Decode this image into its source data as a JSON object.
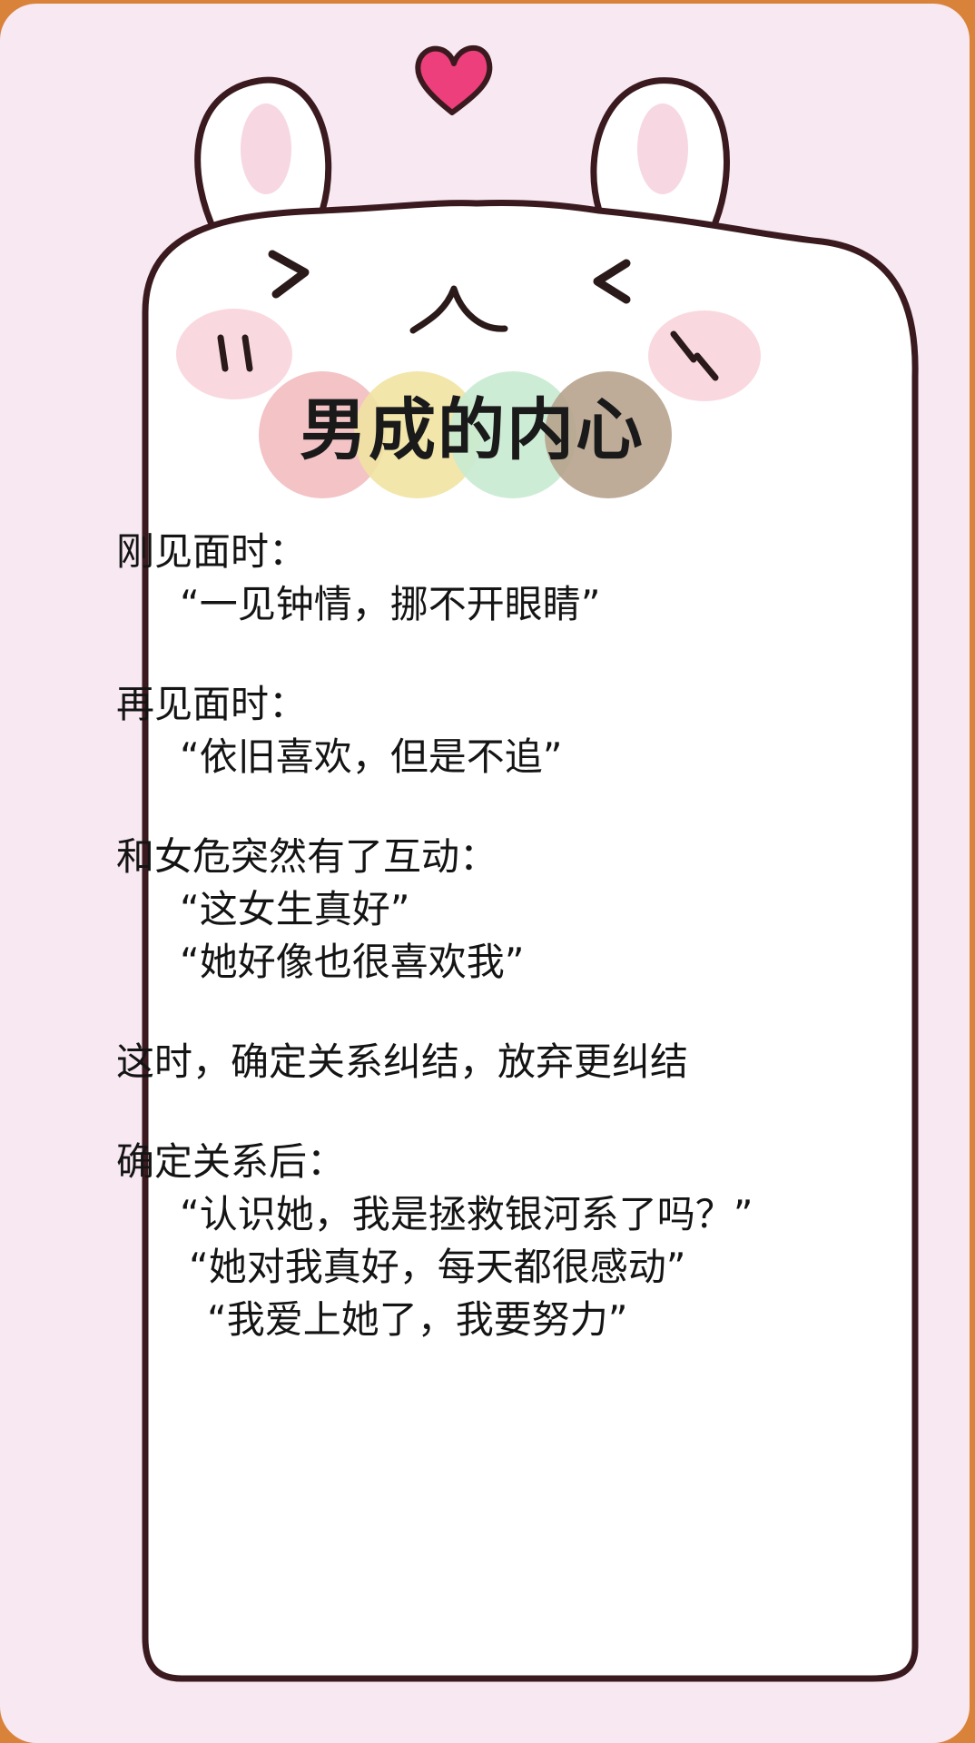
{
  "title": "男成的内心",
  "sections": [
    {
      "heading": "刚见面时：",
      "lines": [
        "“一见钟情，挪不开眼睛”"
      ]
    },
    {
      "heading": "再见面时：",
      "lines": [
        "“依旧喜欢，但是不追”"
      ]
    },
    {
      "heading": "和女危突然有了互动：",
      "lines": [
        "“这女生真好”",
        "“她好像也很喜欢我”"
      ]
    },
    {
      "heading": "这时，确定关系纠结，放弃更纠结",
      "lines": []
    },
    {
      "heading": "确定关系后：",
      "lines": [
        "“认识她，我是拯救银河系了吗？”",
        "“她对我真好，每天都很感动”",
        "“我爱上她了，我要努力”"
      ]
    }
  ],
  "colors": {
    "background": "#d9823a",
    "card": "#f7e8f1",
    "outline": "#3a1a1f",
    "heart": "#ec3f7b",
    "cheek": "#f6c9d2",
    "dot1": "#f2bcc0",
    "dot2": "#f1e3a2",
    "dot3": "#c8ead2",
    "dot4": "#b7a38d"
  }
}
